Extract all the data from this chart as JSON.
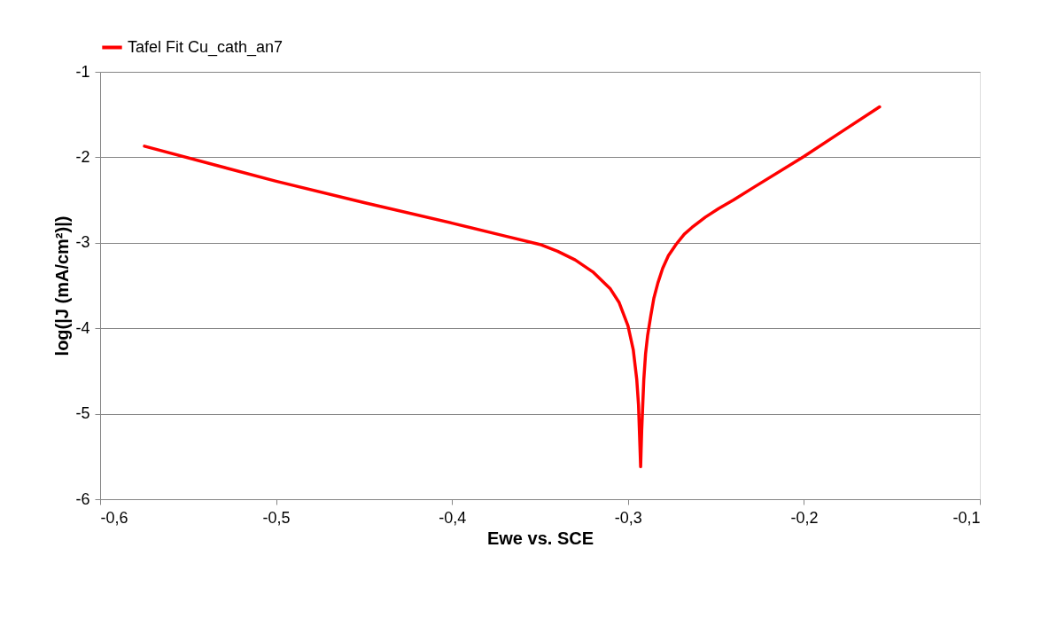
{
  "chart_data": {
    "type": "line",
    "xlabel": "Ewe vs. SCE",
    "ylabel": "log(|J (mA/cm²)|)",
    "x": [
      -0.5748,
      -0.5,
      -0.45,
      -0.4,
      -0.37,
      -0.35,
      -0.34,
      -0.33,
      -0.32,
      -0.31,
      -0.305,
      -0.3,
      -0.297,
      -0.295,
      -0.294,
      -0.2935,
      -0.2928,
      -0.2922,
      -0.2915,
      -0.291,
      -0.29,
      -0.2888,
      -0.287,
      -0.2853,
      -0.283,
      -0.2803,
      -0.277,
      -0.2727,
      -0.268,
      -0.2636,
      -0.256,
      -0.2485,
      -0.24,
      -0.2284,
      -0.2,
      -0.18,
      -0.157
    ],
    "series": [
      {
        "name": "Tafel Fit Cu_cath_an7",
        "color": "#ff0000",
        "values": [
          -1.87,
          -2.28,
          -2.53,
          -2.77,
          -2.92,
          -3.02,
          -3.1,
          -3.2,
          -3.34,
          -3.54,
          -3.7,
          -3.97,
          -4.25,
          -4.6,
          -4.9,
          -5.2,
          -5.62,
          -5.2,
          -4.85,
          -4.6,
          -4.3,
          -4.08,
          -3.85,
          -3.65,
          -3.47,
          -3.3,
          -3.15,
          -3.02,
          -2.9,
          -2.82,
          -2.7,
          -2.6,
          -2.5,
          -2.35,
          -1.99,
          -1.72,
          -1.41
        ]
      }
    ],
    "xlim": [
      -0.6,
      -0.1
    ],
    "xticks": [
      {
        "value": -0.6,
        "label": "-0,6"
      },
      {
        "value": -0.5,
        "label": "-0,5"
      },
      {
        "value": -0.4,
        "label": "-0,4"
      },
      {
        "value": -0.3,
        "label": "-0,3"
      },
      {
        "value": -0.2,
        "label": "-0,2"
      },
      {
        "value": -0.1,
        "label": "-0,1"
      }
    ],
    "ylim": [
      -6,
      -1
    ],
    "yticks": [
      -6,
      -5,
      -4,
      -3,
      -2,
      -1
    ],
    "grid": "y",
    "legend": "top",
    "marker": "none",
    "line_style": "solid"
  }
}
